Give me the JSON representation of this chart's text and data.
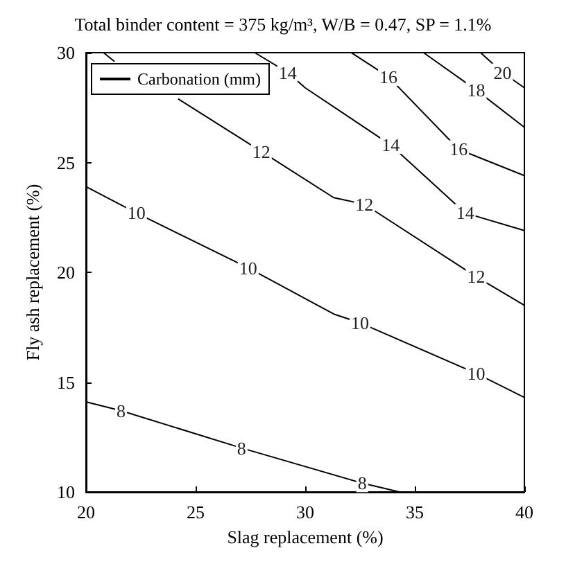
{
  "chart_data": {
    "type": "line",
    "title": "Total binder content = 375 kg/m³, W/B = 0.47, SP = 1.1%",
    "xlabel": "Slag replacement (%)",
    "ylabel": "Fly ash replacement (%)",
    "series": [
      {
        "name": "Carbonation (mm)",
        "color": "#000000",
        "x": [
          20,
          21.6,
          27.1,
          32.6,
          34.3,
          null,
          20,
          22.3,
          27.4,
          31.3,
          32.5,
          37.8,
          40,
          null,
          20.8,
          21.3,
          null,
          24.2,
          28.0,
          31.3,
          32.7,
          37.8,
          40,
          null,
          27.7,
          29.2,
          30.0,
          33.9,
          37.3,
          40,
          null,
          32.1,
          33.8,
          37.0,
          40,
          null,
          35.4,
          37.8,
          40,
          null,
          38.0,
          39.0,
          40
        ],
        "values": [
          14.1,
          13.7,
          12.0,
          10.4,
          10,
          null,
          23.9,
          22.7,
          20.2,
          18.1,
          17.7,
          15.4,
          14.3,
          null,
          30,
          29.6,
          null,
          27.9,
          25.5,
          23.4,
          23.1,
          19.8,
          18.5,
          null,
          30,
          29.1,
          28.4,
          25.8,
          22.7,
          21.9,
          null,
          30,
          28.9,
          25.6,
          24.4,
          null,
          30,
          28.3,
          26.6,
          null,
          30,
          29.1,
          28.4
        ]
      }
    ],
    "annotations": [
      {
        "text": "8",
        "x": 21.6,
        "y": 13.7
      },
      {
        "text": "8",
        "x": 27.1,
        "y": 12.0
      },
      {
        "text": "8",
        "x": 32.6,
        "y": 10.4
      },
      {
        "text": "10",
        "x": 22.3,
        "y": 22.7
      },
      {
        "text": "10",
        "x": 27.4,
        "y": 20.2
      },
      {
        "text": "10",
        "x": 32.5,
        "y": 17.7
      },
      {
        "text": "10",
        "x": 37.8,
        "y": 15.4
      },
      {
        "text": "12",
        "x": 28.0,
        "y": 25.5
      },
      {
        "text": "12",
        "x": 32.7,
        "y": 23.1
      },
      {
        "text": "12",
        "x": 37.8,
        "y": 19.8
      },
      {
        "text": "14",
        "x": 29.2,
        "y": 29.1
      },
      {
        "text": "14",
        "x": 33.9,
        "y": 25.8
      },
      {
        "text": "14",
        "x": 37.3,
        "y": 22.7
      },
      {
        "text": "16",
        "x": 33.8,
        "y": 28.9
      },
      {
        "text": "16",
        "x": 37.0,
        "y": 25.6
      },
      {
        "text": "18",
        "x": 37.8,
        "y": 28.3
      },
      {
        "text": "20",
        "x": 39.0,
        "y": 29.1
      }
    ],
    "xlim": [
      20,
      40
    ],
    "xticks": [
      20,
      25,
      30,
      35,
      40
    ],
    "ylim": [
      10,
      30
    ],
    "yticks": [
      10,
      15,
      20,
      25,
      30
    ],
    "grid": false,
    "legend": "top left",
    "marker": "none",
    "line_style": "solid"
  }
}
